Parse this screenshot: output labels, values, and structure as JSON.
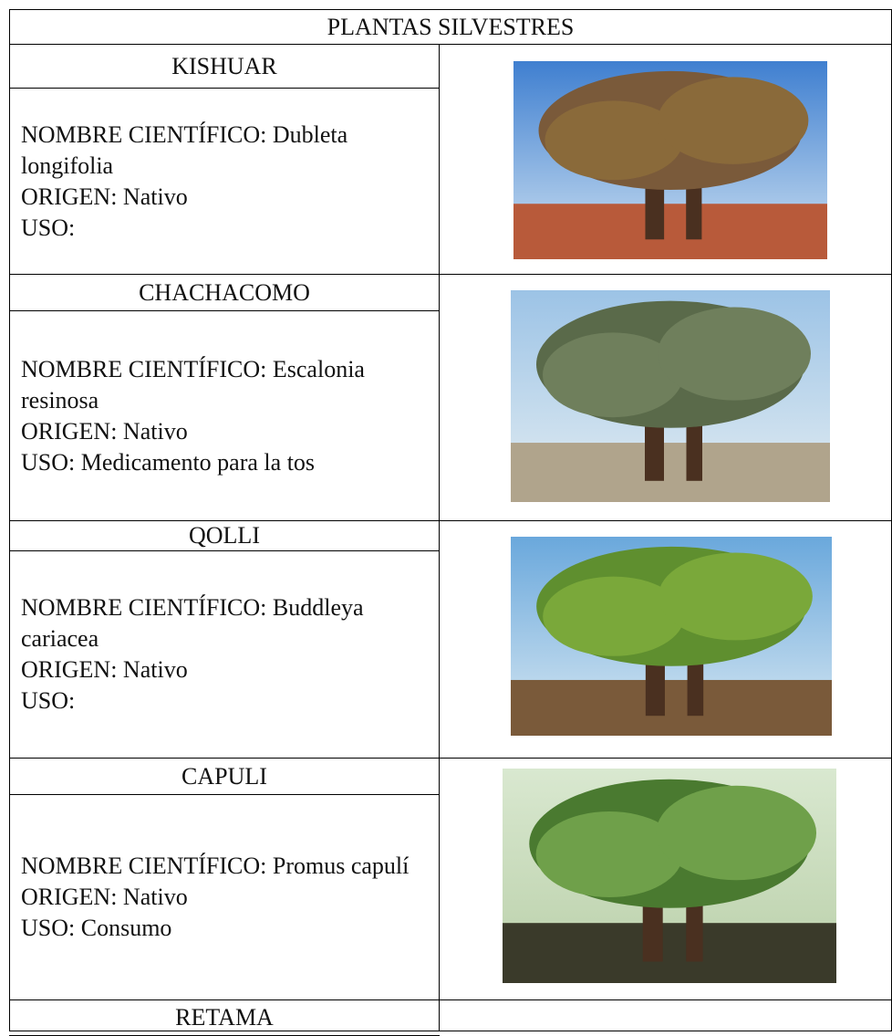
{
  "table": {
    "title": "PLANTAS SILVESTRES",
    "rows": [
      {
        "name": "KISHUAR",
        "lines": [
          "NOMBRE CIENTÍFICO: Dubleta longifolia",
          "ORIGEN: Nativo",
          "USO:"
        ]
      },
      {
        "name": "CHACHACOMO",
        "lines": [
          "NOMBRE CIENTÍFICO: Escalonia resinosa",
          "ORIGEN: Nativo",
          "USO: Medicamento para la tos"
        ]
      },
      {
        "name": "QOLLI",
        "lines": [
          "NOMBRE CIENTÍFICO: Buddleya cariacea",
          "ORIGEN: Nativo",
          "USO:"
        ]
      },
      {
        "name": "CAPULI",
        "lines": [
          "NOMBRE CIENTÍFICO: Promus capulí",
          "ORIGEN: Nativo",
          "USO: Consumo"
        ]
      },
      {
        "name": "RETAMA",
        "lines": []
      }
    ]
  }
}
